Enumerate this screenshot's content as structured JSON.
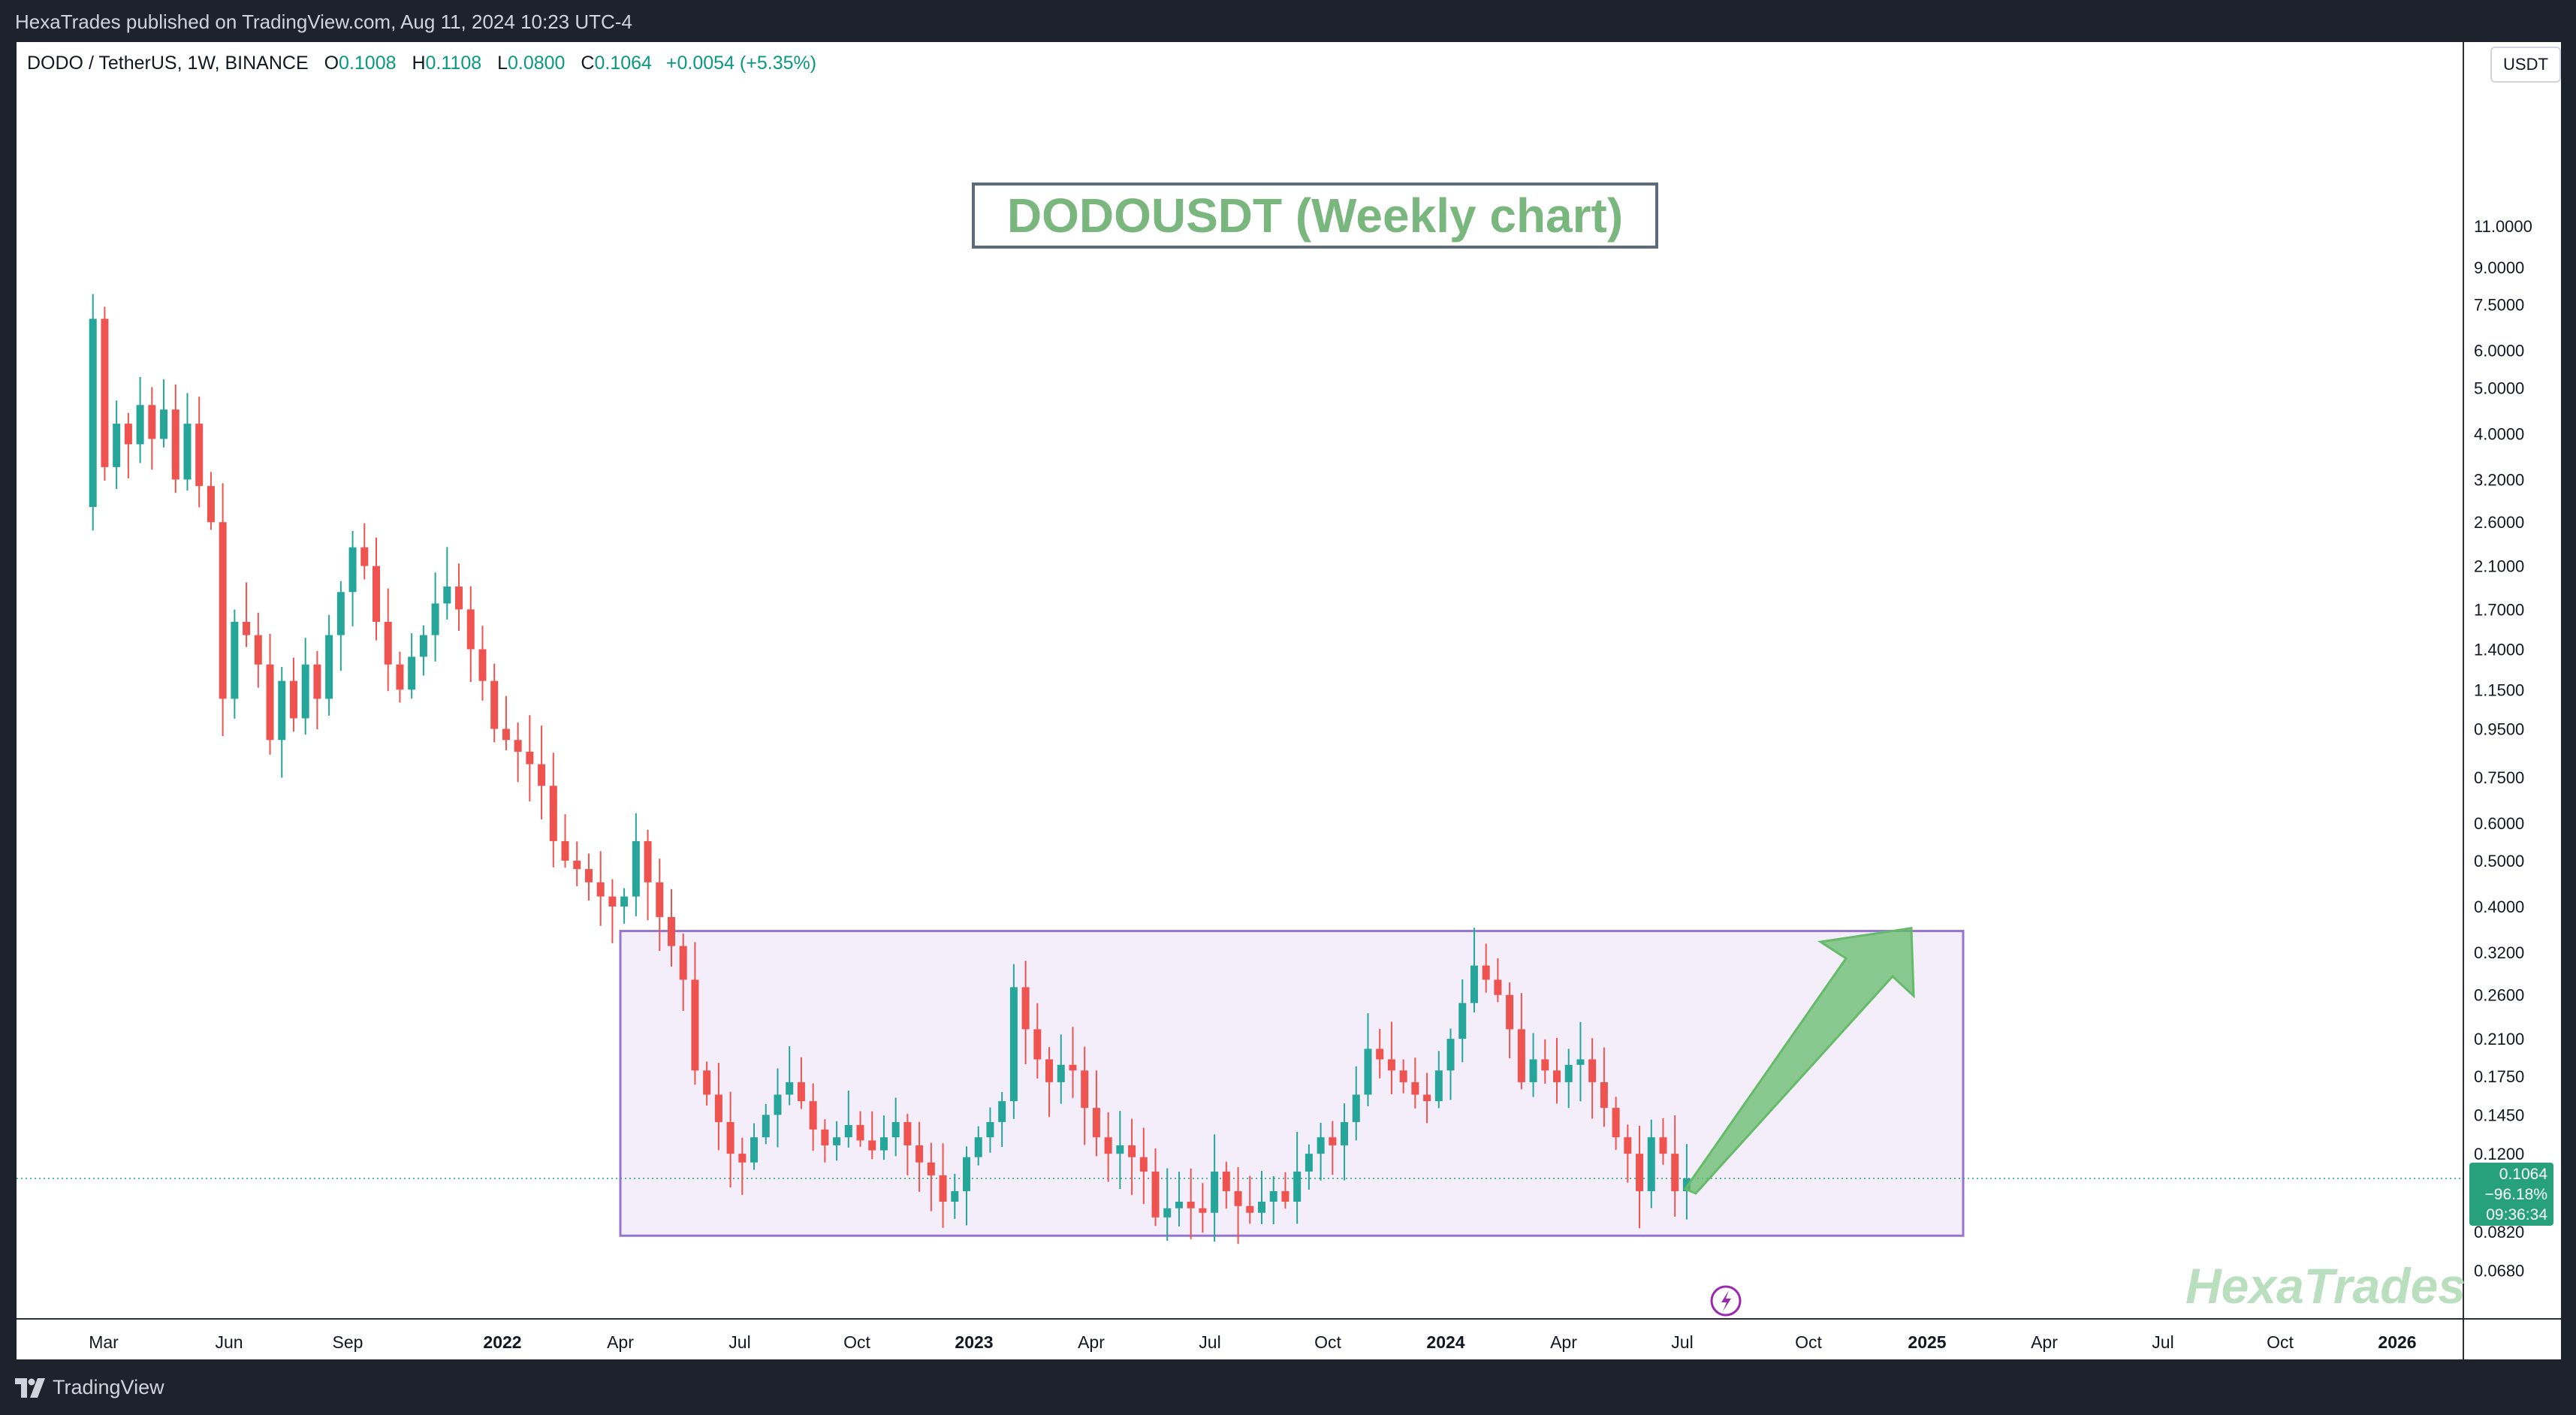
{
  "header": {
    "published_by": "HexaTrades published on TradingView.com, Aug 11, 2024 10:23 UTC-4"
  },
  "footer": {
    "brand": "TradingView"
  },
  "symbol_bar": {
    "symbol": "DODO / TetherUS, 1W, BINANCE",
    "open_label": "O",
    "open": "0.1008",
    "high_label": "H",
    "high": "0.1108",
    "low_label": "L",
    "low": "0.0800",
    "close_label": "C",
    "close": "0.1064",
    "change": "+0.0054 (+5.35%)"
  },
  "annotation": {
    "title": "DODOUSDT (Weekly chart)",
    "watermark": "HexaTrades"
  },
  "price_tag": {
    "price": "0.1064",
    "change_pct": "−96.18%",
    "countdown": "09:36:34"
  },
  "colors": {
    "up": "#26a69a",
    "down": "#ef5350",
    "range_box_border": "#9575cd",
    "range_box_fill": "#f3eefa",
    "arrow": "#66bb6a",
    "last_price": "#26a17b"
  },
  "chart_data": {
    "type": "candlestick",
    "scale": "log",
    "currency": "USDT",
    "y_ticks": [
      "11.0000",
      "9.0000",
      "7.5000",
      "6.0000",
      "5.0000",
      "4.0000",
      "3.2000",
      "2.6000",
      "2.1000",
      "1.7000",
      "1.4000",
      "1.1500",
      "0.9500",
      "0.7500",
      "0.6000",
      "0.5000",
      "0.4000",
      "0.3200",
      "0.2600",
      "0.2100",
      "0.1750",
      "0.1450",
      "0.1200",
      "0.0820",
      "0.0680"
    ],
    "x_ticks": [
      {
        "label": "Mar",
        "bold": false
      },
      {
        "label": "Jun",
        "bold": false
      },
      {
        "label": "Sep",
        "bold": false
      },
      {
        "label": "2022",
        "bold": true
      },
      {
        "label": "Apr",
        "bold": false
      },
      {
        "label": "Jul",
        "bold": false
      },
      {
        "label": "Oct",
        "bold": false
      },
      {
        "label": "2023",
        "bold": true
      },
      {
        "label": "Apr",
        "bold": false
      },
      {
        "label": "Jul",
        "bold": false
      },
      {
        "label": "Oct",
        "bold": false
      },
      {
        "label": "2024",
        "bold": true
      },
      {
        "label": "Apr",
        "bold": false
      },
      {
        "label": "Jul",
        "bold": false
      },
      {
        "label": "Oct",
        "bold": false
      },
      {
        "label": "2025",
        "bold": true
      },
      {
        "label": "Apr",
        "bold": false
      },
      {
        "label": "Jul",
        "bold": false
      },
      {
        "label": "Oct",
        "bold": false
      },
      {
        "label": "2026",
        "bold": true
      }
    ],
    "last_price": 0.1064,
    "range_box": {
      "low": 0.0805,
      "high": 0.355,
      "start": "2022-04",
      "end": "2024-12"
    },
    "arrow_target": 0.36,
    "key_prices": {
      "all_time_high": 10.0,
      "range_high": 0.355,
      "range_low": 0.0805,
      "current": 0.1064
    },
    "path": [
      [
        0,
        2.8
      ],
      [
        1,
        7.0
      ],
      [
        2,
        3.4
      ],
      [
        3,
        4.2
      ],
      [
        4,
        3.8
      ],
      [
        5,
        4.6
      ],
      [
        6,
        3.9
      ],
      [
        7,
        4.5
      ],
      [
        8,
        3.2
      ],
      [
        9,
        4.2
      ],
      [
        10,
        3.1
      ],
      [
        11,
        2.6
      ],
      [
        12,
        1.1
      ],
      [
        13,
        1.6
      ],
      [
        14,
        1.5
      ],
      [
        15,
        1.3
      ],
      [
        16,
        0.9
      ],
      [
        17,
        1.2
      ],
      [
        18,
        1.0
      ],
      [
        19,
        1.3
      ],
      [
        20,
        1.1
      ],
      [
        21,
        1.5
      ],
      [
        22,
        1.85
      ],
      [
        23,
        2.3
      ],
      [
        24,
        2.1
      ],
      [
        25,
        1.6
      ],
      [
        26,
        1.3
      ],
      [
        27,
        1.15
      ],
      [
        28,
        1.35
      ],
      [
        29,
        1.5
      ],
      [
        30,
        1.75
      ],
      [
        31,
        1.9
      ],
      [
        32,
        1.7
      ],
      [
        33,
        1.4
      ],
      [
        34,
        1.2
      ],
      [
        35,
        0.95
      ],
      [
        36,
        0.9
      ],
      [
        37,
        0.85
      ],
      [
        38,
        0.8
      ],
      [
        39,
        0.72
      ],
      [
        40,
        0.55
      ],
      [
        41,
        0.5
      ],
      [
        42,
        0.48
      ],
      [
        43,
        0.45
      ],
      [
        44,
        0.42
      ],
      [
        45,
        0.4
      ],
      [
        46,
        0.42
      ],
      [
        47,
        0.55
      ],
      [
        48,
        0.45
      ],
      [
        49,
        0.38
      ],
      [
        50,
        0.33
      ],
      [
        51,
        0.28
      ],
      [
        52,
        0.18
      ],
      [
        53,
        0.16
      ],
      [
        54,
        0.14
      ],
      [
        55,
        0.12
      ],
      [
        56,
        0.115
      ],
      [
        57,
        0.13
      ],
      [
        58,
        0.145
      ],
      [
        59,
        0.16
      ],
      [
        60,
        0.17
      ],
      [
        61,
        0.155
      ],
      [
        62,
        0.135
      ],
      [
        63,
        0.125
      ],
      [
        64,
        0.13
      ],
      [
        65,
        0.138
      ],
      [
        66,
        0.128
      ],
      [
        67,
        0.122
      ],
      [
        68,
        0.13
      ],
      [
        69,
        0.14
      ],
      [
        70,
        0.125
      ],
      [
        71,
        0.115
      ],
      [
        72,
        0.108
      ],
      [
        73,
        0.095
      ],
      [
        74,
        0.1
      ],
      [
        75,
        0.118
      ],
      [
        76,
        0.13
      ],
      [
        77,
        0.14
      ],
      [
        78,
        0.155
      ],
      [
        79,
        0.27
      ],
      [
        80,
        0.22
      ],
      [
        81,
        0.19
      ],
      [
        82,
        0.17
      ],
      [
        83,
        0.185
      ],
      [
        84,
        0.18
      ],
      [
        85,
        0.15
      ],
      [
        86,
        0.13
      ],
      [
        87,
        0.12
      ],
      [
        88,
        0.125
      ],
      [
        89,
        0.118
      ],
      [
        90,
        0.11
      ],
      [
        91,
        0.088
      ],
      [
        92,
        0.092
      ],
      [
        93,
        0.095
      ],
      [
        94,
        0.092
      ],
      [
        95,
        0.09
      ],
      [
        96,
        0.11
      ],
      [
        97,
        0.1
      ],
      [
        98,
        0.093
      ],
      [
        99,
        0.09
      ],
      [
        100,
        0.095
      ],
      [
        101,
        0.1
      ],
      [
        102,
        0.095
      ],
      [
        103,
        0.11
      ],
      [
        104,
        0.12
      ],
      [
        105,
        0.13
      ],
      [
        106,
        0.125
      ],
      [
        107,
        0.14
      ],
      [
        108,
        0.16
      ],
      [
        109,
        0.2
      ],
      [
        110,
        0.19
      ],
      [
        111,
        0.18
      ],
      [
        112,
        0.17
      ],
      [
        113,
        0.16
      ],
      [
        114,
        0.155
      ],
      [
        115,
        0.18
      ],
      [
        116,
        0.21
      ],
      [
        117,
        0.25
      ],
      [
        118,
        0.3
      ],
      [
        119,
        0.28
      ],
      [
        120,
        0.26
      ],
      [
        121,
        0.22
      ],
      [
        122,
        0.17
      ],
      [
        123,
        0.19
      ],
      [
        124,
        0.18
      ],
      [
        125,
        0.17
      ],
      [
        126,
        0.185
      ],
      [
        127,
        0.19
      ],
      [
        128,
        0.17
      ],
      [
        129,
        0.15
      ],
      [
        130,
        0.13
      ],
      [
        131,
        0.12
      ],
      [
        132,
        0.1
      ],
      [
        133,
        0.13
      ],
      [
        134,
        0.12
      ],
      [
        135,
        0.1
      ],
      [
        136,
        0.1064
      ]
    ]
  }
}
